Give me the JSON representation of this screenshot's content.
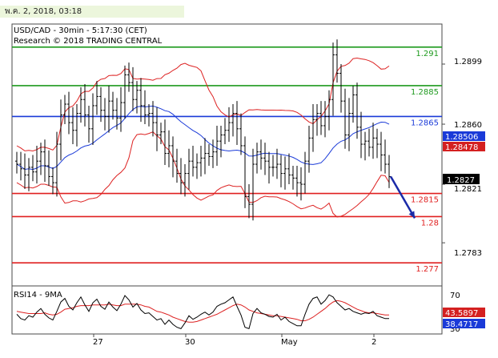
{
  "timestamp": "พ.ค. 2, 2018, 03:18",
  "chart_data": {
    "type": "ohlc",
    "title": "USD/CAD - 30min - 5:17:30 (CET)",
    "subtitle": "Research © 2018 TRADING CENTRAL",
    "ylim": [
      1.2755,
      1.2925
    ],
    "y_ticks": [
      "1.2899",
      "1.2860",
      "1.2821",
      "1.2783"
    ],
    "x_ticks": [
      "27",
      "30",
      "May",
      "2"
    ],
    "price_labels": {
      "last": "1.2827",
      "band_upper": "1.28506",
      "band_mid": "1.28478"
    },
    "colors": {
      "support": "#e02020",
      "resistance": "#1e9a1e",
      "pivot": "#1a3ad8",
      "bands": "#dd2222",
      "ma": "#1a3ad8",
      "candles": "#000000",
      "label_bg": "#000000",
      "label_red": "#d42020",
      "label_blue": "#1a3ad8"
    },
    "levels": [
      {
        "value": 1.291,
        "label": "1.291",
        "kind": "resistance"
      },
      {
        "value": 1.2885,
        "label": "1.2885",
        "kind": "resistance"
      },
      {
        "value": 1.2865,
        "label": "1.2865",
        "kind": "pivot"
      },
      {
        "value": 1.2815,
        "label": "1.2815",
        "kind": "support"
      },
      {
        "value": 1.28,
        "label": "1.28",
        "kind": "support"
      },
      {
        "value": 1.277,
        "label": "1.277",
        "kind": "support"
      }
    ],
    "projection": {
      "from": 1.2826,
      "to": 1.2799
    },
    "close": [
      1.2834,
      1.2831,
      1.2827,
      1.2832,
      1.2829,
      1.2836,
      1.2842,
      1.2833,
      1.2826,
      1.2822,
      1.2847,
      1.2866,
      1.2873,
      1.2861,
      1.2856,
      1.2867,
      1.2876,
      1.2866,
      1.2857,
      1.2872,
      1.2878,
      1.2869,
      1.2865,
      1.2875,
      1.2869,
      1.2864,
      1.2874,
      1.2892,
      1.2887,
      1.2876,
      1.2882,
      1.2872,
      1.2866,
      1.2867,
      1.2861,
      1.2853,
      1.2855,
      1.2841,
      1.2846,
      1.2836,
      1.2828,
      1.2822,
      1.2828,
      1.2836,
      1.2832,
      1.2835,
      1.2838,
      1.2841,
      1.2839,
      1.2842,
      1.2849,
      1.2853,
      1.2856,
      1.2861,
      1.2867,
      1.2857,
      1.2846,
      1.2813,
      1.2808,
      1.2834,
      1.2842,
      1.2838,
      1.2836,
      1.2832,
      1.2832,
      1.2834,
      1.2828,
      1.2831,
      1.2827,
      1.2825,
      1.2822,
      1.2821,
      1.2836,
      1.2851,
      1.2863,
      1.2867,
      1.2859,
      1.2865,
      1.2876,
      1.2905,
      1.2893,
      1.2875,
      1.2853,
      1.2867,
      1.2879,
      1.2858,
      1.2847,
      1.2849,
      1.2845,
      1.2851,
      1.2847,
      1.284,
      1.2834,
      1.2826
    ],
    "rsi": {
      "name": "RSI14 - 9MA",
      "range": [
        20,
        80
      ],
      "ticks": [
        "70",
        "30"
      ],
      "last": "38.4717",
      "ma_last": "43.5897",
      "values": [
        44,
        38,
        36,
        42,
        40,
        47,
        52,
        44,
        39,
        36,
        48,
        61,
        66,
        55,
        50,
        60,
        68,
        57,
        48,
        60,
        65,
        55,
        51,
        61,
        54,
        49,
        58,
        70,
        64,
        54,
        59,
        50,
        45,
        46,
        41,
        36,
        38,
        30,
        36,
        30,
        26,
        24,
        32,
        42,
        37,
        40,
        44,
        47,
        43,
        47,
        55,
        58,
        60,
        64,
        68,
        55,
        43,
        26,
        24,
        45,
        52,
        46,
        44,
        41,
        40,
        44,
        36,
        40,
        34,
        31,
        28,
        28,
        44,
        58,
        66,
        68,
        58,
        63,
        71,
        68,
        60,
        55,
        50,
        52,
        48,
        46,
        44,
        46,
        45,
        48,
        42,
        40,
        38,
        38
      ],
      "ma": [
        48,
        47,
        46,
        45,
        45,
        45,
        45,
        46,
        44,
        43,
        44,
        47,
        51,
        52,
        53,
        55,
        56,
        56,
        56,
        57,
        57,
        57,
        57,
        58,
        57,
        56,
        56,
        58,
        58,
        58,
        58,
        57,
        55,
        54,
        51,
        48,
        47,
        45,
        43,
        40,
        38,
        36,
        34,
        33,
        33,
        34,
        36,
        38,
        40,
        42,
        44,
        47,
        50,
        53,
        56,
        58,
        57,
        54,
        50,
        48,
        46,
        45,
        44,
        43,
        42,
        42,
        41,
        40,
        39,
        38,
        37,
        35,
        35,
        37,
        40,
        44,
        48,
        52,
        57,
        61,
        63,
        62,
        60,
        57,
        54,
        51,
        49,
        47,
        46,
        46,
        45,
        44,
        43,
        43
      ]
    }
  }
}
